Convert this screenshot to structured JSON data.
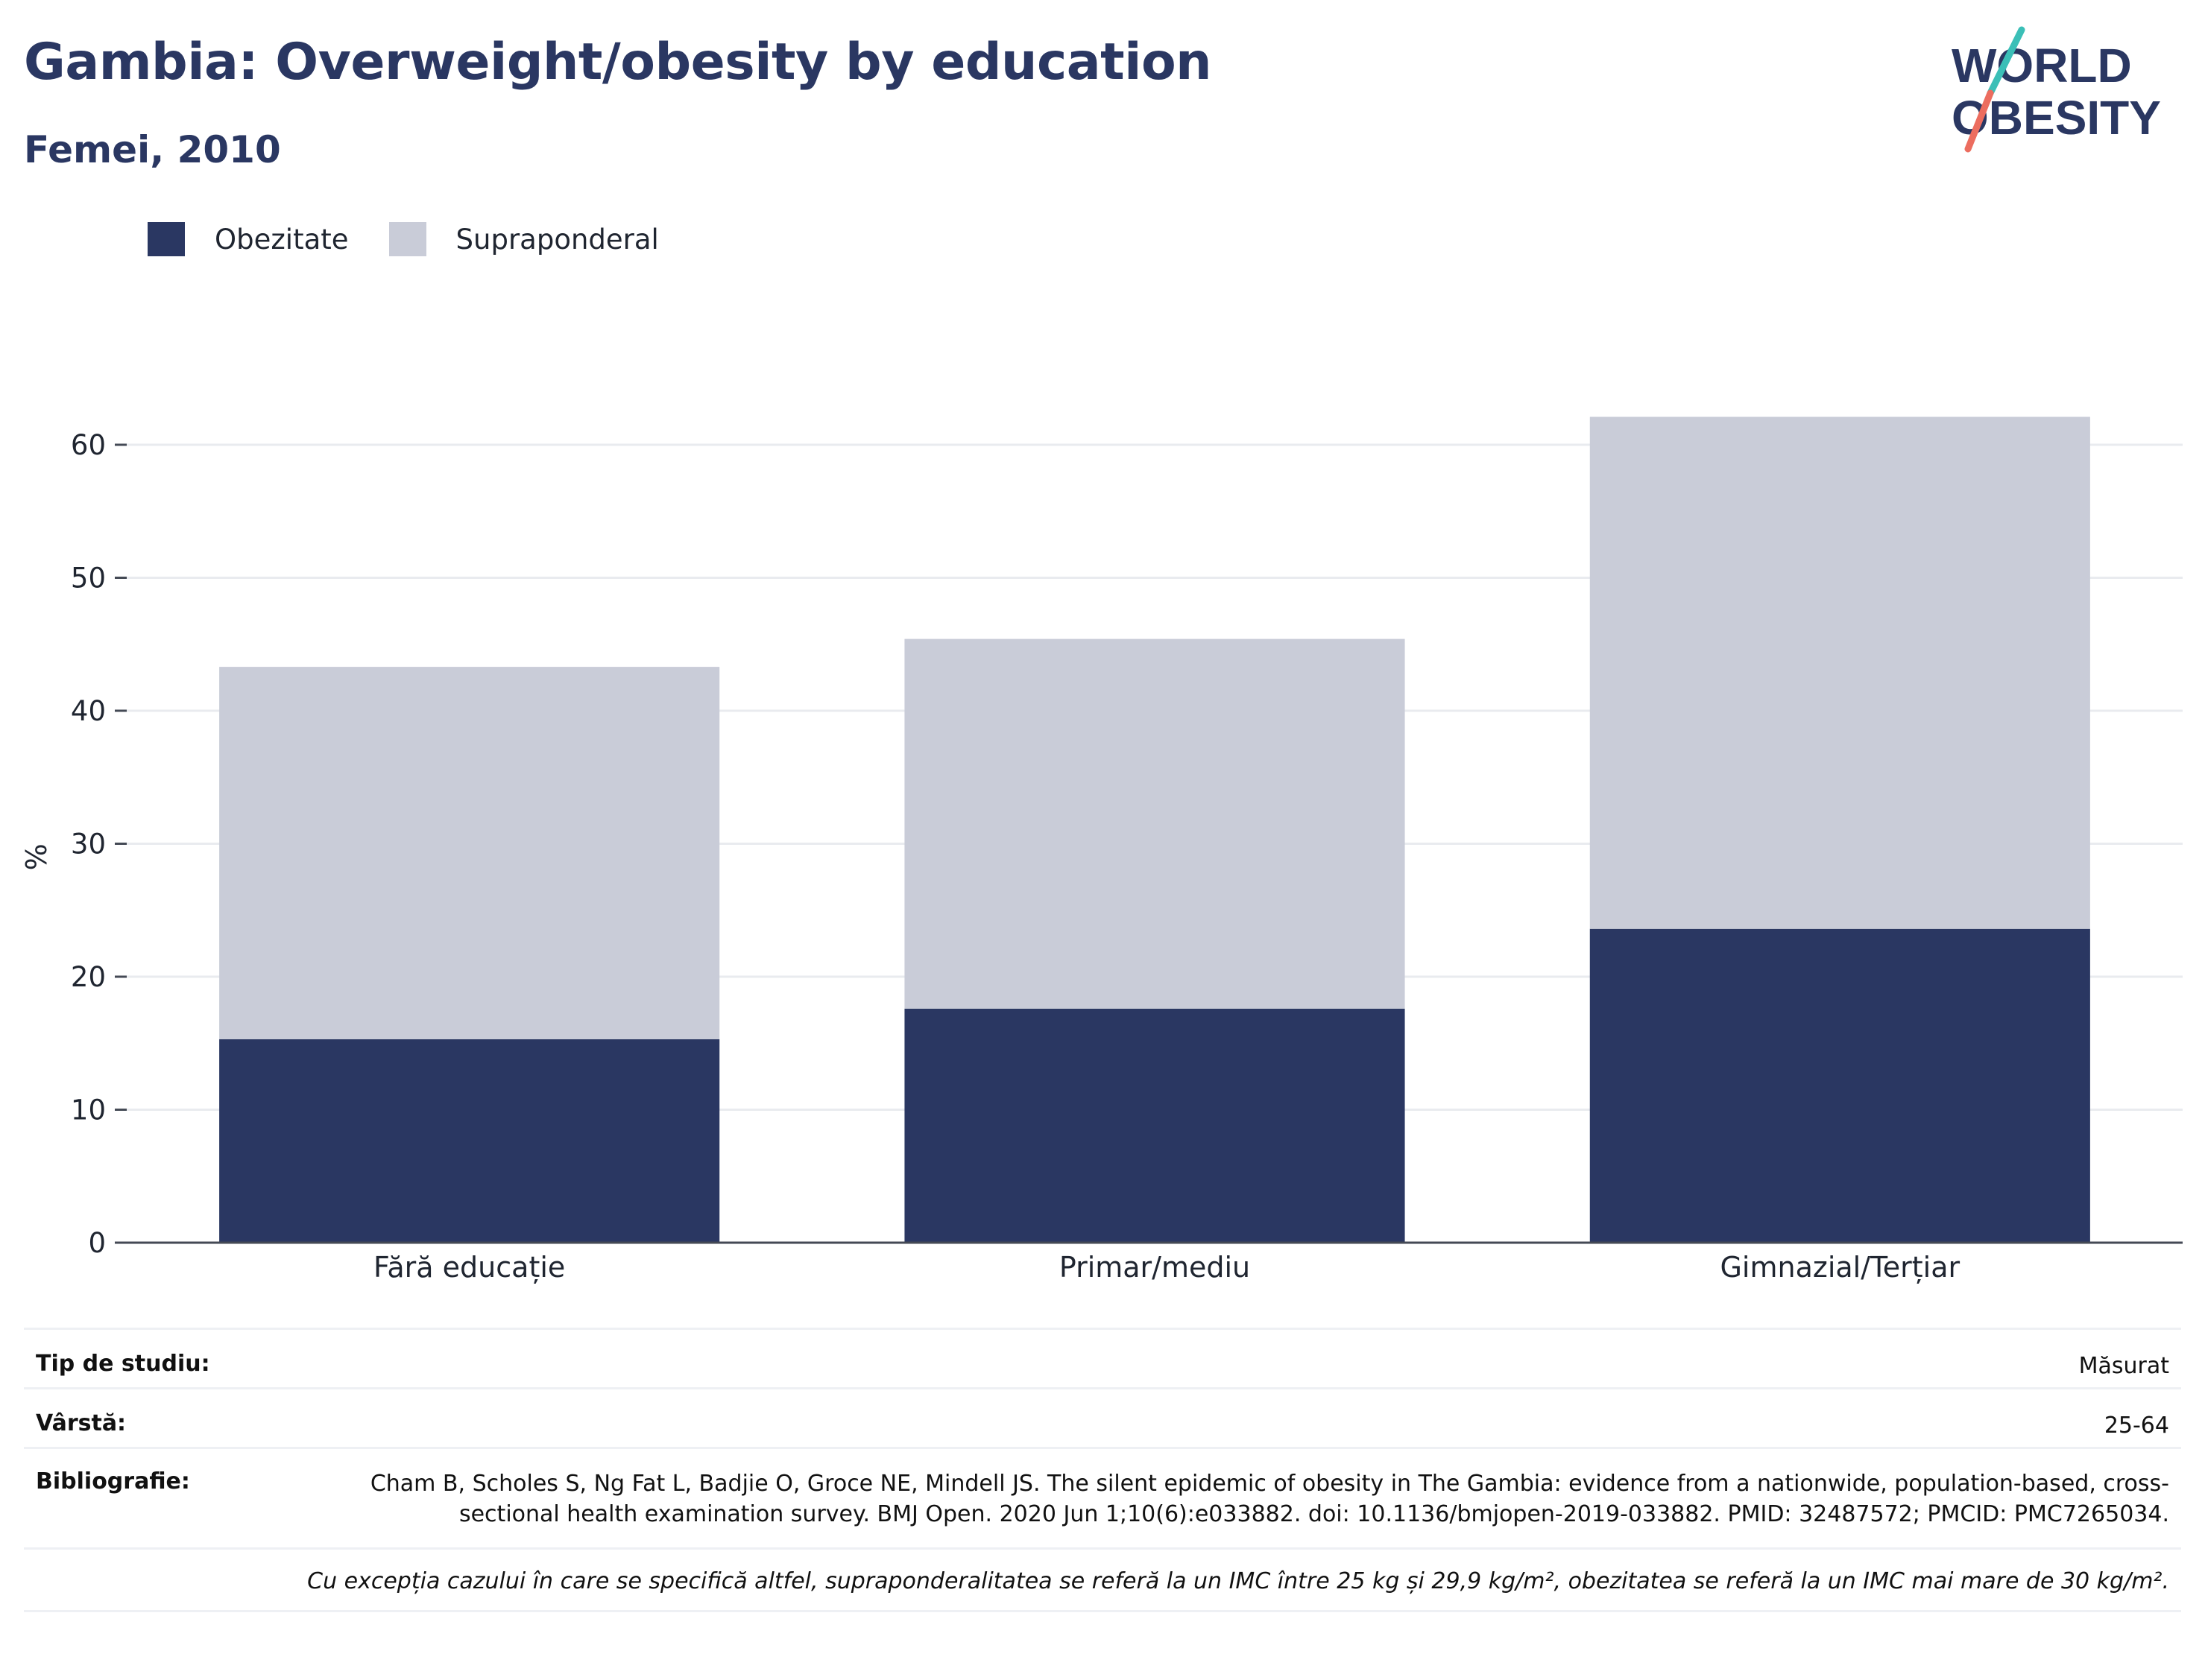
{
  "header": {
    "title": "Gambia: Overweight/obesity by education",
    "subtitle": "Femei, 2010"
  },
  "logo": {
    "line1": "WORLD",
    "line2": "OBESITY"
  },
  "colors": {
    "obesity": "#2a3762",
    "overweight": "#c9ccd8",
    "text_dark": "#2a3762",
    "logo_teal": "#3bbfb7",
    "logo_coral": "#ec6d5f"
  },
  "legend": [
    {
      "label": "Obezitate"
    },
    {
      "label": "Supraponderal"
    }
  ],
  "chart_data": {
    "type": "bar",
    "stacked": true,
    "categories": [
      "Fără educație",
      "Primar/mediu",
      "Gimnazial/Terțiar"
    ],
    "series": [
      {
        "name": "Obezitate",
        "values": [
          15.3,
          17.6,
          23.6
        ]
      },
      {
        "name": "Supraponderal",
        "values": [
          28.0,
          27.8,
          38.5
        ]
      }
    ],
    "totals": [
      43.3,
      45.4,
      62.1
    ],
    "ylabel": "%",
    "xlabel": "",
    "ylim": [
      0,
      65
    ],
    "yticks": [
      0,
      10,
      20,
      30,
      40,
      50,
      60
    ],
    "grid": true,
    "legend_position": "top-left"
  },
  "info": {
    "study_type_label": "Tip de studiu:",
    "study_type_value": "Măsurat",
    "age_label": "Vârstă:",
    "age_value": "25-64",
    "bibliography_label": "Bibliografie:",
    "bibliography_value": "Cham B, Scholes S, Ng Fat L, Badjie O, Groce NE, Mindell JS. The silent epidemic of obesity in The Gambia: evidence from a nationwide, population-based, cross-sectional health examination survey. BMJ Open. 2020 Jun 1;10(6):e033882. doi: 10.1136/bmjopen-2019-033882. PMID: 32487572; PMCID: PMC7265034.",
    "note": "Cu excepția cazului în care se specifică altfel, supraponderalitatea se referă la un IMC între 25 kg și 29,9 kg/m², obezitatea se referă la un IMC mai mare de 30 kg/m²."
  }
}
